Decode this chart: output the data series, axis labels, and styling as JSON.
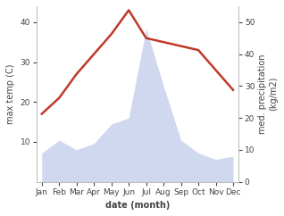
{
  "months": [
    "Jan",
    "Feb",
    "Mar",
    "Apr",
    "May",
    "Jun",
    "Jul",
    "Aug",
    "Sep",
    "Oct",
    "Nov",
    "Dec"
  ],
  "temperature": [
    17,
    21,
    27,
    32,
    37,
    43,
    36,
    35,
    34,
    33,
    28,
    23
  ],
  "precipitation": [
    9,
    13,
    10,
    12,
    18,
    20,
    48,
    30,
    13,
    9,
    7,
    8
  ],
  "temp_color": "#c0392b",
  "precip_fill_color": "#b8c4e8",
  "precip_alpha": 0.65,
  "temp_ylim": [
    0,
    44
  ],
  "precip_ylim": [
    0,
    55
  ],
  "temp_yticks": [
    10,
    20,
    30,
    40
  ],
  "precip_yticks": [
    0,
    10,
    20,
    30,
    40,
    50
  ],
  "xlabel": "date (month)",
  "ylabel_left": "max temp (C)",
  "ylabel_right": "med. precipitation\n(kg/m2)",
  "fig_width": 3.18,
  "fig_height": 2.42,
  "dpi": 100,
  "background_color": "#ffffff",
  "spine_color": "#bbbbbb",
  "tick_color": "#444444",
  "label_fontsize": 7,
  "tick_fontsize": 6.5,
  "line_width": 1.8
}
